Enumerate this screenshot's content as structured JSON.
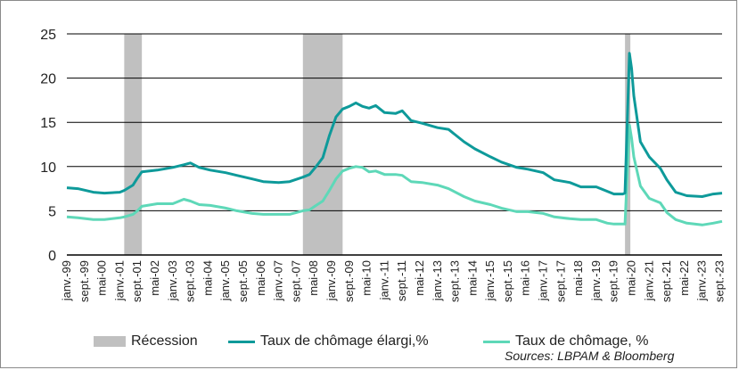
{
  "chart_data": {
    "type": "line",
    "ylim": [
      0,
      25
    ],
    "yticks": [
      "0",
      "5",
      "10",
      "15",
      "20",
      "25"
    ],
    "x_start": "1999-01",
    "x_end": "2023-10",
    "tick_labels": [
      {
        "date": "1999-01",
        "label": "janv.-99"
      },
      {
        "date": "1999-09",
        "label": "sept.-99"
      },
      {
        "date": "2000-05",
        "label": "mai-00"
      },
      {
        "date": "2001-01",
        "label": "janv.-01"
      },
      {
        "date": "2001-09",
        "label": "sept.-01"
      },
      {
        "date": "2002-05",
        "label": "mai-02"
      },
      {
        "date": "2003-01",
        "label": "janv.-03"
      },
      {
        "date": "2003-09",
        "label": "sept.-03"
      },
      {
        "date": "2004-05",
        "label": "mai-04"
      },
      {
        "date": "2005-01",
        "label": "janv.-05"
      },
      {
        "date": "2005-09",
        "label": "sept.-05"
      },
      {
        "date": "2006-05",
        "label": "mai-06"
      },
      {
        "date": "2007-01",
        "label": "janv.-07"
      },
      {
        "date": "2007-09",
        "label": "sept.-07"
      },
      {
        "date": "2008-05",
        "label": "mai-08"
      },
      {
        "date": "2009-01",
        "label": "janv.-09"
      },
      {
        "date": "2009-09",
        "label": "sept.-09"
      },
      {
        "date": "2010-05",
        "label": "mai-10"
      },
      {
        "date": "2011-01",
        "label": "janv.-11"
      },
      {
        "date": "2011-09",
        "label": "sept.-11"
      },
      {
        "date": "2012-05",
        "label": "mai-12"
      },
      {
        "date": "2013-01",
        "label": "janv.-13"
      },
      {
        "date": "2013-09",
        "label": "sept.-13"
      },
      {
        "date": "2014-05",
        "label": "mai-14"
      },
      {
        "date": "2015-01",
        "label": "janv.-15"
      },
      {
        "date": "2015-09",
        "label": "sept.-15"
      },
      {
        "date": "2016-05",
        "label": "mai-16"
      },
      {
        "date": "2017-01",
        "label": "janv.-17"
      },
      {
        "date": "2017-09",
        "label": "sept.-17"
      },
      {
        "date": "2018-05",
        "label": "mai-18"
      },
      {
        "date": "2019-01",
        "label": "janv.-19"
      },
      {
        "date": "2019-09",
        "label": "sept.-19"
      },
      {
        "date": "2020-05",
        "label": "mai-20"
      },
      {
        "date": "2021-01",
        "label": "janv.-21"
      },
      {
        "date": "2021-09",
        "label": "sept.-21"
      },
      {
        "date": "2022-05",
        "label": "mai-22"
      },
      {
        "date": "2023-01",
        "label": "janv.-23"
      },
      {
        "date": "2023-09",
        "label": "sept.-23"
      }
    ],
    "recessions": [
      {
        "start": "2001-03",
        "end": "2001-11"
      },
      {
        "start": "2007-12",
        "end": "2009-06"
      },
      {
        "start": "2020-02",
        "end": "2020-04"
      }
    ],
    "series": [
      {
        "name": "Taux de chômage élargi,%",
        "color": "#0e9a9a",
        "points": [
          [
            "1999-01",
            7.6
          ],
          [
            "1999-06",
            7.5
          ],
          [
            "2000-01",
            7.1
          ],
          [
            "2000-06",
            7.0
          ],
          [
            "2001-01",
            7.1
          ],
          [
            "2001-03",
            7.3
          ],
          [
            "2001-07",
            7.9
          ],
          [
            "2001-09",
            8.7
          ],
          [
            "2001-11",
            9.4
          ],
          [
            "2002-06",
            9.6
          ],
          [
            "2003-01",
            9.9
          ],
          [
            "2003-06",
            10.2
          ],
          [
            "2003-09",
            10.4
          ],
          [
            "2004-01",
            9.9
          ],
          [
            "2004-06",
            9.6
          ],
          [
            "2005-01",
            9.3
          ],
          [
            "2005-06",
            9.0
          ],
          [
            "2006-01",
            8.6
          ],
          [
            "2006-06",
            8.3
          ],
          [
            "2007-01",
            8.2
          ],
          [
            "2007-06",
            8.3
          ],
          [
            "2007-12",
            8.8
          ],
          [
            "2008-03",
            9.1
          ],
          [
            "2008-06",
            10.0
          ],
          [
            "2008-09",
            11.0
          ],
          [
            "2008-12",
            13.5
          ],
          [
            "2009-03",
            15.6
          ],
          [
            "2009-06",
            16.5
          ],
          [
            "2009-09",
            16.8
          ],
          [
            "2009-12",
            17.2
          ],
          [
            "2010-03",
            16.8
          ],
          [
            "2010-06",
            16.6
          ],
          [
            "2010-09",
            16.9
          ],
          [
            "2011-01",
            16.1
          ],
          [
            "2011-06",
            16.0
          ],
          [
            "2011-09",
            16.3
          ],
          [
            "2012-01",
            15.2
          ],
          [
            "2012-06",
            14.9
          ],
          [
            "2013-01",
            14.4
          ],
          [
            "2013-06",
            14.2
          ],
          [
            "2014-01",
            12.8
          ],
          [
            "2014-06",
            12.0
          ],
          [
            "2015-01",
            11.1
          ],
          [
            "2015-06",
            10.5
          ],
          [
            "2016-01",
            9.9
          ],
          [
            "2016-06",
            9.7
          ],
          [
            "2017-01",
            9.3
          ],
          [
            "2017-06",
            8.5
          ],
          [
            "2018-01",
            8.2
          ],
          [
            "2018-06",
            7.7
          ],
          [
            "2019-01",
            7.7
          ],
          [
            "2019-06",
            7.2
          ],
          [
            "2019-09",
            6.9
          ],
          [
            "2020-01",
            6.9
          ],
          [
            "2020-02",
            7.0
          ],
          [
            "2020-04",
            22.8
          ],
          [
            "2020-05",
            21.1
          ],
          [
            "2020-06",
            18.0
          ],
          [
            "2020-09",
            12.8
          ],
          [
            "2021-01",
            11.1
          ],
          [
            "2021-06",
            9.8
          ],
          [
            "2021-09",
            8.5
          ],
          [
            "2022-01",
            7.1
          ],
          [
            "2022-06",
            6.7
          ],
          [
            "2023-01",
            6.6
          ],
          [
            "2023-06",
            6.9
          ],
          [
            "2023-10",
            7.0
          ]
        ]
      },
      {
        "name": "Taux de chômage, %",
        "color": "#5ed8b8",
        "points": [
          [
            "1999-01",
            4.3
          ],
          [
            "1999-06",
            4.2
          ],
          [
            "2000-01",
            4.0
          ],
          [
            "2000-06",
            4.0
          ],
          [
            "2001-01",
            4.2
          ],
          [
            "2001-03",
            4.3
          ],
          [
            "2001-07",
            4.6
          ],
          [
            "2001-09",
            5.0
          ],
          [
            "2001-11",
            5.5
          ],
          [
            "2002-06",
            5.8
          ],
          [
            "2003-01",
            5.8
          ],
          [
            "2003-06",
            6.3
          ],
          [
            "2003-09",
            6.1
          ],
          [
            "2004-01",
            5.7
          ],
          [
            "2004-06",
            5.6
          ],
          [
            "2005-01",
            5.3
          ],
          [
            "2005-06",
            5.0
          ],
          [
            "2006-01",
            4.7
          ],
          [
            "2006-06",
            4.6
          ],
          [
            "2007-01",
            4.6
          ],
          [
            "2007-06",
            4.6
          ],
          [
            "2007-12",
            5.0
          ],
          [
            "2008-03",
            5.1
          ],
          [
            "2008-06",
            5.6
          ],
          [
            "2008-09",
            6.1
          ],
          [
            "2008-12",
            7.3
          ],
          [
            "2009-03",
            8.6
          ],
          [
            "2009-06",
            9.5
          ],
          [
            "2009-09",
            9.8
          ],
          [
            "2009-12",
            10.0
          ],
          [
            "2010-03",
            9.9
          ],
          [
            "2010-06",
            9.4
          ],
          [
            "2010-09",
            9.5
          ],
          [
            "2011-01",
            9.1
          ],
          [
            "2011-06",
            9.1
          ],
          [
            "2011-09",
            9.0
          ],
          [
            "2012-01",
            8.3
          ],
          [
            "2012-06",
            8.2
          ],
          [
            "2013-01",
            7.9
          ],
          [
            "2013-06",
            7.5
          ],
          [
            "2014-01",
            6.6
          ],
          [
            "2014-06",
            6.1
          ],
          [
            "2015-01",
            5.7
          ],
          [
            "2015-06",
            5.3
          ],
          [
            "2016-01",
            4.9
          ],
          [
            "2016-06",
            4.9
          ],
          [
            "2017-01",
            4.7
          ],
          [
            "2017-06",
            4.3
          ],
          [
            "2018-01",
            4.1
          ],
          [
            "2018-06",
            4.0
          ],
          [
            "2019-01",
            4.0
          ],
          [
            "2019-06",
            3.6
          ],
          [
            "2019-09",
            3.5
          ],
          [
            "2020-01",
            3.5
          ],
          [
            "2020-02",
            3.5
          ],
          [
            "2020-04",
            14.7
          ],
          [
            "2020-05",
            13.2
          ],
          [
            "2020-06",
            11.1
          ],
          [
            "2020-09",
            7.8
          ],
          [
            "2021-01",
            6.4
          ],
          [
            "2021-06",
            5.9
          ],
          [
            "2021-09",
            4.8
          ],
          [
            "2022-01",
            4.0
          ],
          [
            "2022-06",
            3.6
          ],
          [
            "2023-01",
            3.4
          ],
          [
            "2023-06",
            3.6
          ],
          [
            "2023-10",
            3.8
          ]
        ]
      }
    ],
    "legend": [
      "Récession",
      "Taux de chômage élargi,%",
      "Taux de chômage, %"
    ],
    "legend_position": "bottom"
  },
  "source": "Sources: LBPAM & Bloomberg",
  "colors": {
    "recession": "#c0c0c0",
    "grid": "#000000"
  }
}
